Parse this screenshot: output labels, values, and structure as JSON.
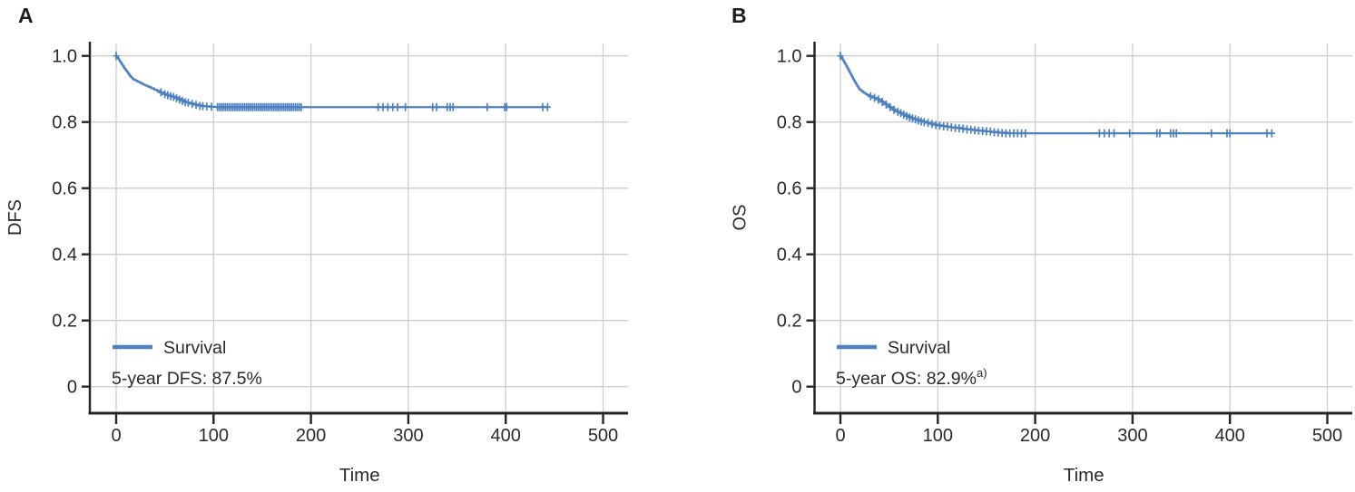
{
  "figure": {
    "background": "#ffffff",
    "curve_color": "#4d81bf",
    "grid_color": "#cdcdcd",
    "axis_color": "#262626",
    "text_color": "#2a2a2a"
  },
  "chart_data": [
    {
      "panel_label": "A",
      "type": "line",
      "subtype": "kaplan-meier-step",
      "xlabel": "Time",
      "ylabel": "DFS",
      "xlim": [
        -26,
        523
      ],
      "ylim": [
        -0.08,
        1.04
      ],
      "xticks": [
        0,
        100,
        200,
        300,
        400,
        500
      ],
      "xtick_labels": [
        "0",
        "100",
        "200",
        "300",
        "400",
        "500"
      ],
      "yticks": [
        0,
        0.2,
        0.4,
        0.6,
        0.8,
        1.0
      ],
      "ytick_labels": [
        "0",
        "0.2",
        "0.4",
        "0.6",
        "0.8",
        "1.0"
      ],
      "grid": true,
      "legend": {
        "position": "lower-left",
        "entries": [
          {
            "label": "Survival",
            "color": "#4d81bf"
          }
        ]
      },
      "annotation": {
        "text": "5-year DFS: 87.5%",
        "superscript": ""
      },
      "series": [
        {
          "name": "Survival",
          "plateau_value": 0.845,
          "end_time": 443,
          "points": [
            [
              0,
              1.0
            ],
            [
              1,
              0.996
            ],
            [
              2,
              0.992
            ],
            [
              3,
              0.987
            ],
            [
              4,
              0.982
            ],
            [
              5,
              0.978
            ],
            [
              6,
              0.973
            ],
            [
              7,
              0.969
            ],
            [
              8,
              0.964
            ],
            [
              9,
              0.96
            ],
            [
              10,
              0.956
            ],
            [
              11,
              0.952
            ],
            [
              12,
              0.948
            ],
            [
              13,
              0.944
            ],
            [
              14,
              0.94
            ],
            [
              15,
              0.937
            ],
            [
              16,
              0.934
            ],
            [
              17,
              0.931
            ],
            [
              18,
              0.928
            ],
            [
              20,
              0.925
            ],
            [
              22,
              0.922
            ],
            [
              24,
              0.919
            ],
            [
              26,
              0.916
            ],
            [
              28,
              0.913
            ],
            [
              30,
              0.91
            ],
            [
              33,
              0.906
            ],
            [
              36,
              0.902
            ],
            [
              39,
              0.898
            ],
            [
              42,
              0.894
            ],
            [
              45,
              0.89
            ],
            [
              48,
              0.886
            ],
            [
              51,
              0.883
            ],
            [
              54,
              0.88
            ],
            [
              57,
              0.877
            ],
            [
              60,
              0.875
            ],
            [
              63,
              0.871
            ],
            [
              66,
              0.867
            ],
            [
              69,
              0.863
            ],
            [
              72,
              0.859
            ],
            [
              76,
              0.856
            ],
            [
              80,
              0.853
            ],
            [
              85,
              0.85
            ],
            [
              90,
              0.848
            ],
            [
              96,
              0.846
            ],
            [
              103,
              0.845
            ],
            [
              443,
              0.845
            ]
          ],
          "censor_marks": [
            [
              0,
              1.0
            ],
            [
              46,
              0.89
            ],
            [
              50,
              0.884
            ],
            [
              53,
              0.881
            ],
            [
              56,
              0.878
            ],
            [
              59,
              0.876
            ],
            [
              62,
              0.872
            ],
            [
              65,
              0.868
            ],
            [
              68,
              0.864
            ],
            [
              71,
              0.86
            ],
            [
              74,
              0.858
            ],
            [
              78,
              0.855
            ],
            [
              82,
              0.852
            ],
            [
              86,
              0.849
            ],
            [
              89,
              0.848
            ],
            [
              93,
              0.847
            ],
            [
              98,
              0.846
            ],
            [
              104,
              0.845
            ],
            [
              106,
              0.845
            ],
            [
              108,
              0.845
            ],
            [
              110,
              0.845
            ],
            [
              112,
              0.845
            ],
            [
              114,
              0.845
            ],
            [
              116,
              0.845
            ],
            [
              118,
              0.845
            ],
            [
              120,
              0.845
            ],
            [
              122,
              0.845
            ],
            [
              124,
              0.845
            ],
            [
              126,
              0.845
            ],
            [
              128,
              0.845
            ],
            [
              130,
              0.845
            ],
            [
              132,
              0.845
            ],
            [
              134,
              0.845
            ],
            [
              136,
              0.845
            ],
            [
              138,
              0.845
            ],
            [
              140,
              0.845
            ],
            [
              142,
              0.845
            ],
            [
              144,
              0.845
            ],
            [
              146,
              0.845
            ],
            [
              148,
              0.845
            ],
            [
              150,
              0.845
            ],
            [
              152,
              0.845
            ],
            [
              154,
              0.845
            ],
            [
              156,
              0.845
            ],
            [
              158,
              0.845
            ],
            [
              160,
              0.845
            ],
            [
              162,
              0.845
            ],
            [
              164,
              0.845
            ],
            [
              166,
              0.845
            ],
            [
              168,
              0.845
            ],
            [
              170,
              0.845
            ],
            [
              172,
              0.845
            ],
            [
              174,
              0.845
            ],
            [
              176,
              0.845
            ],
            [
              178,
              0.845
            ],
            [
              180,
              0.845
            ],
            [
              182,
              0.845
            ],
            [
              184,
              0.845
            ],
            [
              186,
              0.845
            ],
            [
              188,
              0.845
            ],
            [
              190,
              0.845
            ],
            [
              269,
              0.845
            ],
            [
              274,
              0.845
            ],
            [
              279,
              0.845
            ],
            [
              284,
              0.845
            ],
            [
              289,
              0.845
            ],
            [
              297,
              0.845
            ],
            [
              325,
              0.845
            ],
            [
              329,
              0.845
            ],
            [
              340,
              0.845
            ],
            [
              343,
              0.845
            ],
            [
              346,
              0.845
            ],
            [
              381,
              0.845
            ],
            [
              399,
              0.845
            ],
            [
              401,
              0.845
            ],
            [
              438,
              0.845
            ],
            [
              443,
              0.845
            ]
          ]
        }
      ]
    },
    {
      "panel_label": "B",
      "type": "line",
      "subtype": "kaplan-meier-step",
      "xlabel": "Time",
      "ylabel": "OS",
      "xlim": [
        -26,
        525
      ],
      "ylim": [
        -0.08,
        1.04
      ],
      "xticks": [
        0,
        100,
        200,
        300,
        400,
        500
      ],
      "xtick_labels": [
        "0",
        "100",
        "200",
        "300",
        "400",
        "500"
      ],
      "yticks": [
        0,
        0.2,
        0.4,
        0.6,
        0.8,
        1.0
      ],
      "ytick_labels": [
        "0",
        "0.2",
        "0.4",
        "0.6",
        "0.8",
        "1.0"
      ],
      "grid": true,
      "legend": {
        "position": "lower-left",
        "entries": [
          {
            "label": "Survival",
            "color": "#4d81bf"
          }
        ]
      },
      "annotation": {
        "text": "5-year OS: 82.9%",
        "superscript": "a)"
      },
      "series": [
        {
          "name": "Survival",
          "plateau_value": 0.766,
          "end_time": 443,
          "points": [
            [
              0,
              1.0
            ],
            [
              1,
              0.995
            ],
            [
              2,
              0.99
            ],
            [
              3,
              0.985
            ],
            [
              4,
              0.98
            ],
            [
              5,
              0.975
            ],
            [
              6,
              0.969
            ],
            [
              7,
              0.964
            ],
            [
              8,
              0.958
            ],
            [
              9,
              0.952
            ],
            [
              10,
              0.947
            ],
            [
              11,
              0.941
            ],
            [
              12,
              0.936
            ],
            [
              13,
              0.93
            ],
            [
              14,
              0.925
            ],
            [
              15,
              0.92
            ],
            [
              16,
              0.915
            ],
            [
              17,
              0.91
            ],
            [
              18,
              0.906
            ],
            [
              19,
              0.901
            ],
            [
              20,
              0.897
            ],
            [
              22,
              0.892
            ],
            [
              24,
              0.888
            ],
            [
              26,
              0.884
            ],
            [
              28,
              0.881
            ],
            [
              30,
              0.878
            ],
            [
              33,
              0.875
            ],
            [
              36,
              0.872
            ],
            [
              38,
              0.87
            ],
            [
              40,
              0.867
            ],
            [
              42,
              0.863
            ],
            [
              44,
              0.859
            ],
            [
              46,
              0.855
            ],
            [
              48,
              0.851
            ],
            [
              50,
              0.847
            ],
            [
              52,
              0.843
            ],
            [
              54,
              0.839
            ],
            [
              56,
              0.835
            ],
            [
              58,
              0.832
            ],
            [
              60,
              0.829
            ],
            [
              63,
              0.825
            ],
            [
              66,
              0.821
            ],
            [
              69,
              0.817
            ],
            [
              72,
              0.813
            ],
            [
              75,
              0.81
            ],
            [
              78,
              0.807
            ],
            [
              81,
              0.804
            ],
            [
              85,
              0.801
            ],
            [
              89,
              0.798
            ],
            [
              93,
              0.795
            ],
            [
              97,
              0.792
            ],
            [
              101,
              0.79
            ],
            [
              105,
              0.788
            ],
            [
              110,
              0.786
            ],
            [
              115,
              0.784
            ],
            [
              120,
              0.782
            ],
            [
              125,
              0.78
            ],
            [
              130,
              0.778
            ],
            [
              136,
              0.776
            ],
            [
              142,
              0.774
            ],
            [
              148,
              0.772
            ],
            [
              155,
              0.77
            ],
            [
              163,
              0.768
            ],
            [
              172,
              0.766
            ],
            [
              443,
              0.766
            ]
          ],
          "censor_marks": [
            [
              0,
              1.0
            ],
            [
              31,
              0.878
            ],
            [
              35,
              0.873
            ],
            [
              39,
              0.868
            ],
            [
              43,
              0.861
            ],
            [
              47,
              0.853
            ],
            [
              51,
              0.845
            ],
            [
              55,
              0.837
            ],
            [
              59,
              0.831
            ],
            [
              62,
              0.827
            ],
            [
              65,
              0.822
            ],
            [
              68,
              0.818
            ],
            [
              71,
              0.814
            ],
            [
              74,
              0.811
            ],
            [
              77,
              0.808
            ],
            [
              80,
              0.805
            ],
            [
              83,
              0.802
            ],
            [
              86,
              0.8
            ],
            [
              90,
              0.797
            ],
            [
              94,
              0.794
            ],
            [
              98,
              0.791
            ],
            [
              102,
              0.789
            ],
            [
              106,
              0.787
            ],
            [
              110,
              0.786
            ],
            [
              114,
              0.784
            ],
            [
              118,
              0.782
            ],
            [
              122,
              0.781
            ],
            [
              126,
              0.78
            ],
            [
              130,
              0.778
            ],
            [
              134,
              0.777
            ],
            [
              138,
              0.775
            ],
            [
              142,
              0.774
            ],
            [
              146,
              0.773
            ],
            [
              150,
              0.772
            ],
            [
              154,
              0.771
            ],
            [
              158,
              0.769
            ],
            [
              162,
              0.768
            ],
            [
              166,
              0.767
            ],
            [
              170,
              0.766
            ],
            [
              174,
              0.766
            ],
            [
              178,
              0.766
            ],
            [
              182,
              0.766
            ],
            [
              186,
              0.766
            ],
            [
              190,
              0.766
            ],
            [
              266,
              0.766
            ],
            [
              271,
              0.766
            ],
            [
              276,
              0.766
            ],
            [
              281,
              0.766
            ],
            [
              297,
              0.766
            ],
            [
              325,
              0.766
            ],
            [
              328,
              0.766
            ],
            [
              339,
              0.766
            ],
            [
              342,
              0.766
            ],
            [
              345,
              0.766
            ],
            [
              381,
              0.766
            ],
            [
              397,
              0.766
            ],
            [
              400,
              0.766
            ],
            [
              438,
              0.766
            ],
            [
              443,
              0.766
            ]
          ]
        }
      ]
    }
  ]
}
